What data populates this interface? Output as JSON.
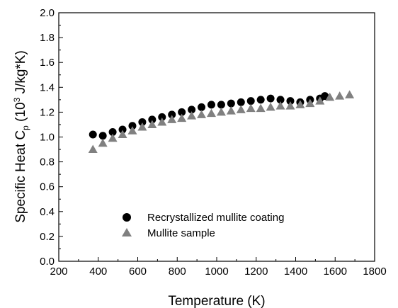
{
  "chart_data": {
    "type": "scatter",
    "xlabel": "Temperature (K)",
    "ylabel": {
      "base": "Specific Heat C",
      "sub": "p",
      "mid": " (10",
      "sup": "3",
      "tail": " J/kg*K)"
    },
    "xlim": [
      200,
      1800
    ],
    "ylim": [
      0.0,
      2.0
    ],
    "xticks": [
      200,
      400,
      600,
      800,
      1000,
      1200,
      1400,
      1600,
      1800
    ],
    "yticks": [
      "0.0",
      "0.2",
      "0.4",
      "0.6",
      "0.8",
      "1.0",
      "1.2",
      "1.4",
      "1.6",
      "1.8",
      "2.0"
    ],
    "grid": false,
    "legend_position": "lower-left",
    "series": [
      {
        "name": "Recrystallized mullite coating",
        "marker": "circle",
        "color": "#000000",
        "x": [
          373,
          423,
          473,
          523,
          573,
          623,
          673,
          723,
          773,
          823,
          873,
          923,
          973,
          1023,
          1073,
          1123,
          1173,
          1223,
          1273,
          1323,
          1373,
          1423,
          1473,
          1523,
          1548
        ],
        "y": [
          1.02,
          1.01,
          1.04,
          1.06,
          1.09,
          1.12,
          1.14,
          1.16,
          1.18,
          1.2,
          1.22,
          1.24,
          1.26,
          1.26,
          1.27,
          1.28,
          1.29,
          1.3,
          1.31,
          1.3,
          1.29,
          1.28,
          1.3,
          1.31,
          1.33
        ]
      },
      {
        "name": "Mullite sample",
        "marker": "triangle",
        "color": "#808080",
        "x": [
          373,
          423,
          473,
          523,
          573,
          623,
          673,
          723,
          773,
          823,
          873,
          923,
          973,
          1023,
          1073,
          1123,
          1173,
          1223,
          1273,
          1323,
          1373,
          1423,
          1473,
          1523,
          1573,
          1623,
          1673
        ],
        "y": [
          0.9,
          0.95,
          0.99,
          1.02,
          1.05,
          1.08,
          1.1,
          1.12,
          1.14,
          1.15,
          1.17,
          1.18,
          1.19,
          1.2,
          1.21,
          1.22,
          1.23,
          1.23,
          1.24,
          1.25,
          1.25,
          1.26,
          1.27,
          1.29,
          1.32,
          1.33,
          1.34
        ]
      }
    ]
  }
}
